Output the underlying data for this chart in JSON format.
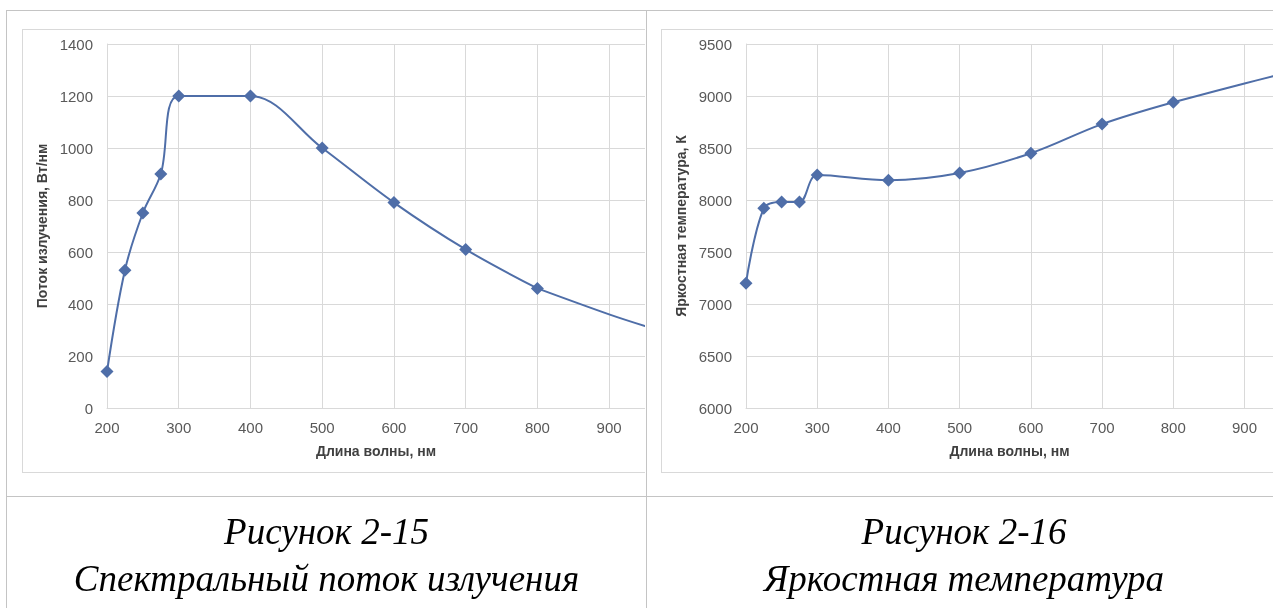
{
  "chart_data": [
    {
      "type": "line",
      "title": "Рисунок 2-15",
      "subtitle": "Спектральный поток излучения",
      "xlabel": "Длина волны, нм",
      "ylabel": "Поток излучения, Вт/нм",
      "xlim": [
        200,
        950
      ],
      "xticks": [
        200,
        300,
        400,
        500,
        600,
        700,
        800,
        900
      ],
      "ylim": [
        0,
        1400
      ],
      "yticks": [
        0,
        200,
        400,
        600,
        800,
        1000,
        1200,
        1400
      ],
      "grid": true,
      "marker": "diamond",
      "series": [
        {
          "x": [
            200,
            225,
            250,
            275,
            300,
            400,
            500,
            600,
            700,
            800
          ],
          "values": [
            140,
            530,
            750,
            900,
            1200,
            1200,
            1000,
            790,
            610,
            460
          ],
          "color": "#4f6ea8"
        },
        {
          "x": [
            800,
            900,
            950
          ],
          "values": [
            460,
            360,
            315
          ],
          "color": "#4f6ea8",
          "marker": "none"
        }
      ]
    },
    {
      "type": "line",
      "title": "Рисунок 2-16",
      "subtitle": "Яркостная температура",
      "xlabel": "Длина волны, нм",
      "ylabel": "Яркостная температура, К",
      "xlim": [
        200,
        940
      ],
      "xticks": [
        200,
        300,
        400,
        500,
        600,
        700,
        800,
        900
      ],
      "ylim": [
        6000,
        9500
      ],
      "yticks": [
        6000,
        6500,
        7000,
        7500,
        8000,
        8500,
        9000,
        9500
      ],
      "grid": true,
      "marker": "diamond",
      "series": [
        {
          "x": [
            200,
            225,
            250,
            275,
            300,
            400,
            500,
            600,
            700,
            800
          ],
          "values": [
            7200,
            7920,
            7980,
            7980,
            8240,
            8190,
            8260,
            8450,
            8730,
            8940
          ],
          "color": "#4f6ea8"
        },
        {
          "x": [
            800,
            900,
            940
          ],
          "values": [
            8940,
            9120,
            9190
          ],
          "color": "#4f6ea8",
          "marker": "none"
        }
      ]
    }
  ]
}
